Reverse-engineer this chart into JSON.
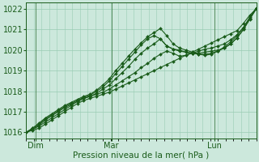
{
  "title": "",
  "xlabel": "Pression niveau de la mer( hPa )",
  "ylabel": "",
  "bg_color": "#cce8dc",
  "grid_color": "#99ccb3",
  "line_color": "#1a5c1a",
  "marker_color": "#1a5c1a",
  "ylim": [
    1015.7,
    1022.3
  ],
  "yticks": [
    1016,
    1017,
    1018,
    1019,
    1020,
    1021,
    1022
  ],
  "xtick_labels": [
    "Dim",
    "Mar",
    "Lun"
  ],
  "xtick_positions": [
    0.04,
    0.37,
    0.82
  ],
  "vline_positions": [
    0.04,
    0.37,
    0.82
  ],
  "xlim": [
    0.0,
    1.0
  ],
  "num_points": 37,
  "series": [
    [
      1016.0,
      1016.1,
      1016.2,
      1016.4,
      1016.6,
      1016.8,
      1017.0,
      1017.2,
      1017.4,
      1017.55,
      1017.65,
      1017.75,
      1017.85,
      1017.95,
      1018.1,
      1018.25,
      1018.4,
      1018.55,
      1018.7,
      1018.85,
      1019.0,
      1019.15,
      1019.3,
      1019.45,
      1019.6,
      1019.75,
      1019.9,
      1020.05,
      1020.2,
      1020.35,
      1020.5,
      1020.65,
      1020.8,
      1020.95,
      1021.3,
      1021.7,
      1022.0
    ],
    [
      1016.0,
      1016.15,
      1016.3,
      1016.5,
      1016.7,
      1016.9,
      1017.1,
      1017.3,
      1017.5,
      1017.65,
      1017.75,
      1017.85,
      1017.95,
      1018.1,
      1018.3,
      1018.5,
      1018.7,
      1018.9,
      1019.15,
      1019.35,
      1019.6,
      1019.8,
      1019.95,
      1019.85,
      1019.7,
      1019.75,
      1019.85,
      1019.95,
      1020.05,
      1020.1,
      1020.2,
      1020.3,
      1020.5,
      1020.75,
      1021.1,
      1021.6,
      1022.05
    ],
    [
      1016.0,
      1016.15,
      1016.35,
      1016.6,
      1016.8,
      1017.0,
      1017.2,
      1017.35,
      1017.5,
      1017.65,
      1017.75,
      1017.9,
      1018.1,
      1018.3,
      1018.6,
      1018.9,
      1019.2,
      1019.55,
      1019.85,
      1020.1,
      1020.3,
      1020.55,
      1020.2,
      1020.05,
      1019.95,
      1019.9,
      1019.85,
      1019.85,
      1019.9,
      1019.95,
      1020.0,
      1020.1,
      1020.3,
      1020.6,
      1021.0,
      1021.55,
      1022.05
    ],
    [
      1016.0,
      1016.2,
      1016.4,
      1016.65,
      1016.85,
      1017.05,
      1017.25,
      1017.4,
      1017.55,
      1017.7,
      1017.8,
      1018.0,
      1018.2,
      1018.5,
      1018.85,
      1019.2,
      1019.55,
      1019.9,
      1020.25,
      1020.55,
      1020.7,
      1020.55,
      1020.2,
      1020.05,
      1020.0,
      1019.9,
      1019.85,
      1019.8,
      1019.8,
      1019.85,
      1019.95,
      1020.1,
      1020.3,
      1020.6,
      1021.0,
      1021.5,
      1022.0
    ],
    [
      1016.0,
      1016.2,
      1016.45,
      1016.7,
      1016.9,
      1017.1,
      1017.3,
      1017.45,
      1017.6,
      1017.75,
      1017.85,
      1018.05,
      1018.3,
      1018.6,
      1019.0,
      1019.35,
      1019.7,
      1020.05,
      1020.35,
      1020.65,
      1020.85,
      1021.05,
      1020.7,
      1020.3,
      1020.1,
      1020.0,
      1019.9,
      1019.8,
      1019.75,
      1019.8,
      1019.95,
      1020.15,
      1020.4,
      1020.7,
      1021.1,
      1021.55,
      1022.0
    ]
  ]
}
